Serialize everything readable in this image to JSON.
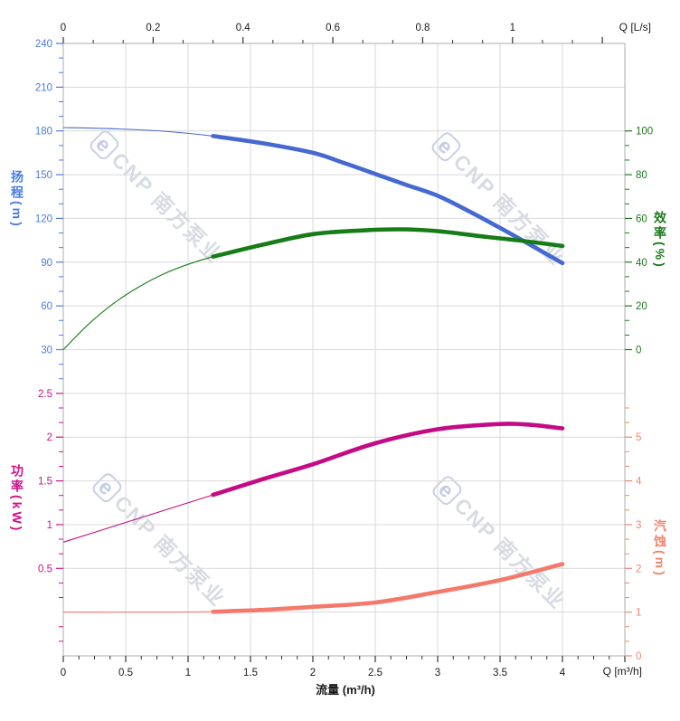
{
  "watermark": {
    "logo_glyph": "e",
    "text": "CNP 南方泵业"
  },
  "colors": {
    "head": "#4568d2",
    "head_label": "#4a7ce0",
    "eff": "#177c17",
    "eff_label": "#1c7a1c",
    "power": "#c40a84",
    "power_label": "#cf0f8a",
    "npsh": "#f4796b",
    "npsh_label": "#f4836d",
    "axis_text": "#1a1a1a",
    "grid": "#d9d9d9",
    "border": "#aeaeae",
    "tick": "#333333"
  },
  "axes": {
    "x_bottom": {
      "title": "流量 (m³/h)",
      "unit": "Q [m³/h]",
      "min": 0,
      "max": 4.5,
      "major_step": 0.5,
      "minor_per_major": 3,
      "labels": [
        "0",
        "0.5",
        "1",
        "1.5",
        "2",
        "2.5",
        "3",
        "3.5",
        "4"
      ]
    },
    "x_top": {
      "unit": "Q [L/s]",
      "min": 0,
      "max": 1.2,
      "major_step": 0.2,
      "minor_per_major": 2,
      "to_bottom": 3.6,
      "labels": [
        "0",
        "0.2",
        "0.4",
        "0.6",
        "0.8",
        "1"
      ]
    },
    "y_head": {
      "title": "扬程(m)",
      "v0": 240,
      "row0": 0,
      "per_row": -30,
      "label_rows_start": 0,
      "labels": [
        "240",
        "210",
        "180",
        "150",
        "120",
        "90",
        "60",
        "30"
      ]
    },
    "y_power": {
      "title": "功率(kW)",
      "v0": 2.5,
      "row0": 8,
      "per_row": -0.5,
      "label_rows_start": 8,
      "labels": [
        "2.5",
        "2",
        "1.5",
        "1",
        "0.5"
      ]
    },
    "y_eff": {
      "title": "效率(%)",
      "v0": 100,
      "row0": 2,
      "per_row": -20,
      "label_rows_start": 2,
      "labels": [
        "100",
        "80",
        "60",
        "40",
        "20",
        "0"
      ]
    },
    "y_npsh": {
      "title": "汽蚀(m)",
      "v0": 5,
      "row0": 9,
      "per_row": -1,
      "label_rows_start": 9,
      "labels": [
        "5",
        "4",
        "3",
        "2",
        "1",
        "0"
      ]
    }
  },
  "chart_data": {
    "type": "line",
    "title": "",
    "x_axis_bottom": {
      "label": "流量 (m³/h)",
      "range": [
        0,
        4.5
      ]
    },
    "x_axis_top": {
      "label": "Q [L/s]",
      "range": [
        0,
        1.25
      ]
    },
    "duty_range": [
      1.2,
      4.0
    ],
    "series": [
      {
        "name": "扬程 (Head)",
        "unit": "m",
        "axis": "y_head",
        "color_key": "head",
        "data_name": "head-curve",
        "axis_range": [
          30,
          240
        ],
        "points": [
          [
            0,
            182.3
          ],
          [
            0.4,
            181.5
          ],
          [
            0.8,
            179.8
          ],
          [
            1.2,
            176.5
          ],
          [
            1.6,
            171.5
          ],
          [
            2.0,
            165
          ],
          [
            2.25,
            158
          ],
          [
            2.5,
            150.5
          ],
          [
            2.75,
            143
          ],
          [
            3.0,
            135.5
          ],
          [
            3.25,
            125
          ],
          [
            3.5,
            113.5
          ],
          [
            3.75,
            101.5
          ],
          [
            4.0,
            89.3
          ]
        ]
      },
      {
        "name": "效率 (Efficiency)",
        "unit": "%",
        "axis": "y_eff",
        "color_key": "eff",
        "data_name": "efficiency-curve",
        "axis_range": [
          0,
          100
        ],
        "points": [
          [
            0,
            0
          ],
          [
            0.2,
            11.5
          ],
          [
            0.4,
            21
          ],
          [
            0.6,
            28.5
          ],
          [
            0.8,
            34.5
          ],
          [
            1.0,
            39
          ],
          [
            1.2,
            42.5
          ],
          [
            1.6,
            48
          ],
          [
            2.0,
            52.8
          ],
          [
            2.4,
            54.5
          ],
          [
            2.7,
            55
          ],
          [
            3.0,
            54.2
          ],
          [
            3.4,
            51.5
          ],
          [
            3.7,
            49.6
          ],
          [
            4.0,
            47.4
          ]
        ]
      },
      {
        "name": "功率 (Power)",
        "unit": "kW",
        "axis": "y_power",
        "color_key": "power",
        "data_name": "power-curve",
        "axis_range": [
          0,
          2.5
        ],
        "points": [
          [
            0,
            0.8
          ],
          [
            0.4,
            0.98
          ],
          [
            0.8,
            1.16
          ],
          [
            1.2,
            1.34
          ],
          [
            1.6,
            1.52
          ],
          [
            2.0,
            1.69
          ],
          [
            2.5,
            1.93
          ],
          [
            3.0,
            2.09
          ],
          [
            3.5,
            2.15
          ],
          [
            3.75,
            2.14
          ],
          [
            4.0,
            2.1
          ]
        ]
      },
      {
        "name": "汽蚀 (NPSH)",
        "unit": "m",
        "axis": "y_npsh",
        "color_key": "npsh",
        "data_name": "npsh-curve",
        "axis_range": [
          0,
          5
        ],
        "points": [
          [
            0,
            1.0
          ],
          [
            0.6,
            1.0
          ],
          [
            1.2,
            1.01
          ],
          [
            1.6,
            1.05
          ],
          [
            2.0,
            1.12
          ],
          [
            2.5,
            1.22
          ],
          [
            3.0,
            1.46
          ],
          [
            3.5,
            1.73
          ],
          [
            4.0,
            2.1
          ]
        ]
      }
    ]
  }
}
